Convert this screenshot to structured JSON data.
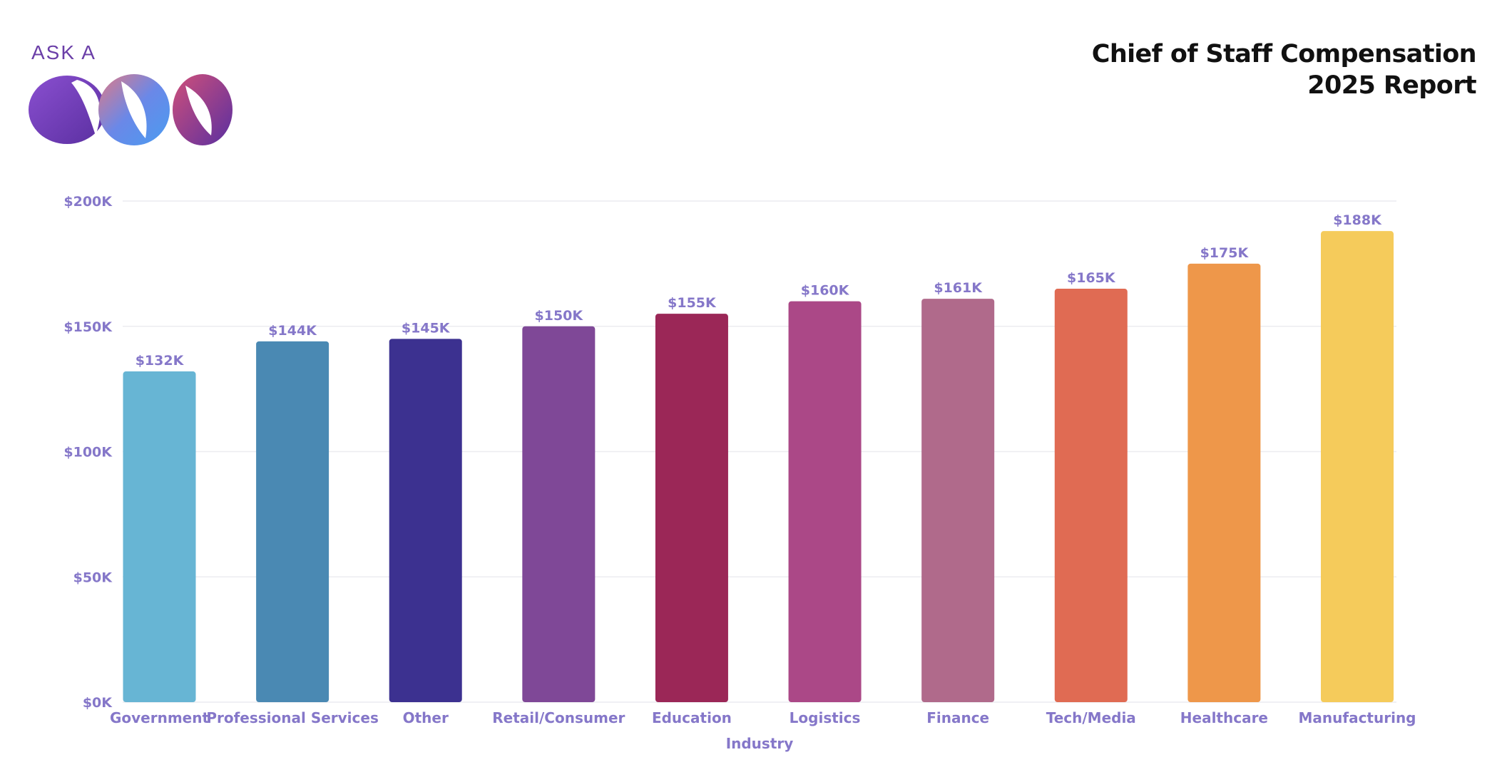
{
  "logo": {
    "small_text": "ASK A",
    "big_text": "COS"
  },
  "header": {
    "title_line1": "Chief of Staff Compensation",
    "title_line2": "2025 Report"
  },
  "chart_data": {
    "type": "bar",
    "title": "",
    "xlabel": "Industry",
    "ylabel": "",
    "categories": [
      "Government",
      "Professional Services",
      "Other",
      "Retail/Consumer",
      "Education",
      "Logistics",
      "Finance",
      "Tech/Media",
      "Healthcare",
      "Manufacturing"
    ],
    "values": [
      132,
      144,
      145,
      150,
      155,
      160,
      161,
      165,
      175,
      188
    ],
    "value_labels": [
      "$132K",
      "$144K",
      "$145K",
      "$150K",
      "$155K",
      "$160K",
      "$161K",
      "$165K",
      "$175K",
      "$188K"
    ],
    "colors": [
      "#67b5d4",
      "#4a89b3",
      "#3c3190",
      "#7f4897",
      "#9b2757",
      "#ab4887",
      "#b06a8b",
      "#e06b53",
      "#ee974a",
      "#f5cb5b"
    ],
    "yticks": [
      0,
      50,
      100,
      150,
      200
    ],
    "ytick_labels": [
      "$0K",
      "$50K",
      "$100K",
      "$150K",
      "$200K"
    ],
    "ylim": [
      0,
      200
    ],
    "grid": true,
    "legend": "none"
  }
}
